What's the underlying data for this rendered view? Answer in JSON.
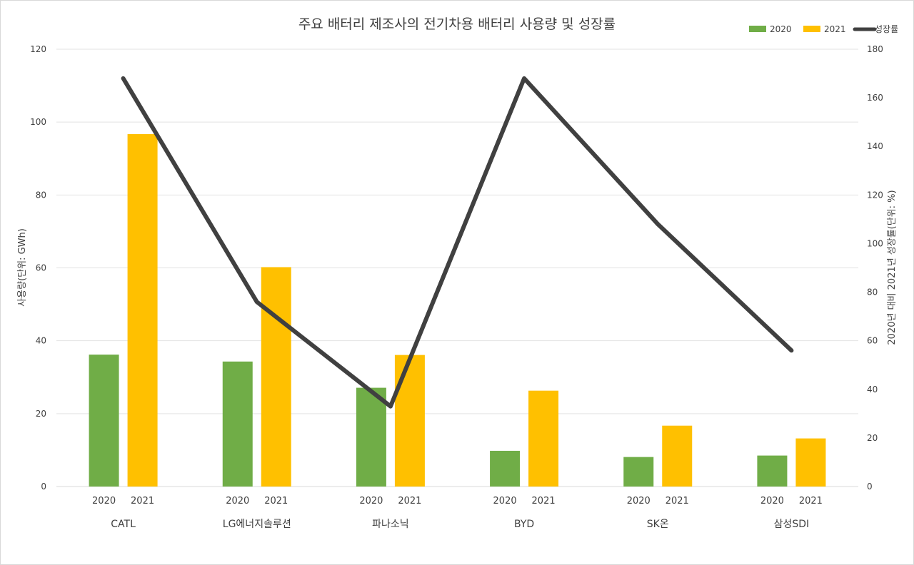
{
  "chart_data": {
    "type": "bar",
    "title": "주요 배터리 제조사의 전기차용 배터리 사용량 및 성장률",
    "categories": [
      "CATL",
      "LG에너지솔루션",
      "파나소닉",
      "BYD",
      "SK온",
      "삼성SDI"
    ],
    "bar_labels": [
      "2020",
      "2021"
    ],
    "series": [
      {
        "name": "2020",
        "type": "bar",
        "axis": "left",
        "color": "#70ad47",
        "values": [
          36.2,
          34.3,
          27.1,
          9.8,
          8.1,
          8.5
        ]
      },
      {
        "name": "2021",
        "type": "bar",
        "axis": "left",
        "color": "#ffc000",
        "values": [
          96.7,
          60.2,
          36.1,
          26.3,
          16.7,
          13.2
        ]
      },
      {
        "name": "성장률",
        "type": "line",
        "axis": "right",
        "color": "#404040",
        "values": [
          168,
          76,
          33,
          168,
          108,
          56
        ]
      }
    ],
    "y_left": {
      "label": "사용량(단위: GWh)",
      "min": 0,
      "max": 120,
      "ticks": [
        "0",
        "20",
        "40",
        "60",
        "80",
        "100",
        "120"
      ]
    },
    "y_right": {
      "label": "2020년 대비 2021년 성장률(단위: %)",
      "min": 0,
      "max": 180,
      "ticks": [
        "0",
        "20",
        "40",
        "60",
        "80",
        "100",
        "120",
        "140",
        "160",
        "180"
      ]
    },
    "legend": {
      "position": "top-right",
      "items": [
        "2020",
        "2021",
        "성장률"
      ]
    },
    "grid": true
  }
}
